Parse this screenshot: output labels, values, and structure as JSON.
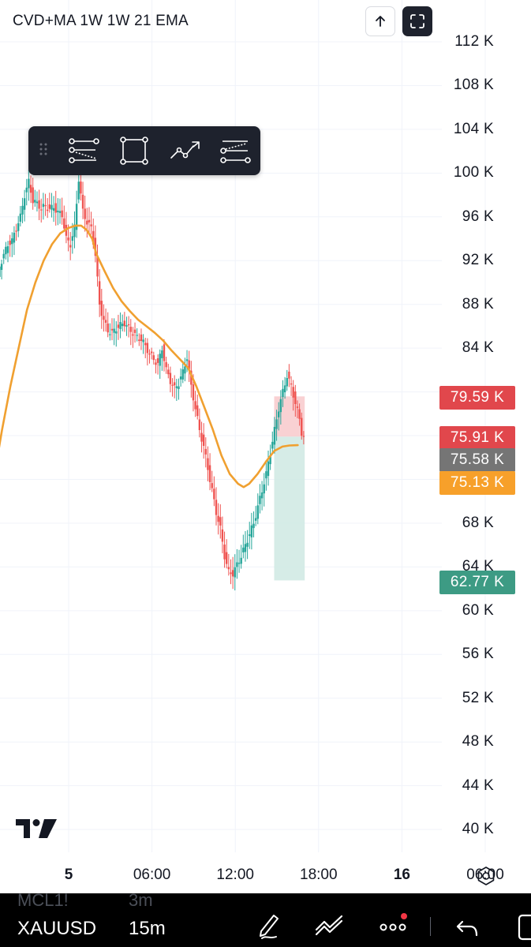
{
  "indicator": {
    "title": "CVD+MA 1W 1W 21 EMA"
  },
  "colors": {
    "up": "#26a69a",
    "down": "#ef5350",
    "ema": "#f0a030",
    "tag_red": "#e1474c",
    "tag_gray": "#757575",
    "tag_orange": "#f7a02a",
    "tag_green": "#3d9b84",
    "zone_red": "#f7c6c8",
    "zone_green": "#cfe9e3"
  },
  "price_tags": [
    {
      "label": "79.59 K",
      "value": 79590,
      "color": "tag_red"
    },
    {
      "label": "75.91 K",
      "value": 75910,
      "color": "tag_red"
    },
    {
      "label": "75.58 K",
      "value": 75580,
      "color": "tag_gray"
    },
    {
      "label": "75.13 K",
      "value": 75130,
      "color": "tag_orange"
    },
    {
      "label": "62.77 K",
      "value": 62770,
      "color": "tag_green"
    }
  ],
  "chart_data": {
    "type": "line",
    "title": "CVD+MA 1W 1W 21 EMA",
    "y_axis": {
      "ticks": [
        112000,
        108000,
        104000,
        100000,
        96000,
        92000,
        88000,
        84000,
        80000,
        76000,
        72000,
        68000,
        64000,
        60000,
        56000,
        52000,
        48000,
        44000,
        40000
      ],
      "tick_labels": [
        "112 K",
        "108 K",
        "104 K",
        "100 K",
        "96 K",
        "92 K",
        "88 K",
        "84 K",
        "",
        "",
        "",
        "68 K",
        "64 K",
        "60 K",
        "56 K",
        "52 K",
        "48 K",
        "44 K",
        "40 K"
      ],
      "ylim": [
        39000,
        115000
      ]
    },
    "x_axis": {
      "tick_labels": [
        "5",
        "06:00",
        "12:00",
        "18:00",
        "16",
        "06:00"
      ],
      "bold_labels": [
        "5",
        "16"
      ],
      "xlim_hours": [
        -5.2,
        35.3
      ],
      "tick_hours": [
        0,
        6,
        12,
        18,
        24,
        30
      ]
    },
    "cvd_path": [
      [
        -5.2,
        89000
      ],
      [
        -4.9,
        91500
      ],
      [
        -4.6,
        92500
      ],
      [
        -4.3,
        93500
      ],
      [
        -4.0,
        93800
      ],
      [
        -3.7,
        95000
      ],
      [
        -3.4,
        96000
      ],
      [
        -3.1,
        98000
      ],
      [
        -2.8,
        99200
      ],
      [
        -2.5,
        97500
      ],
      [
        -2.2,
        97200
      ],
      [
        -1.9,
        96800
      ],
      [
        -1.6,
        97000
      ],
      [
        -1.3,
        96700
      ],
      [
        -1.0,
        96900
      ],
      [
        -0.7,
        96400
      ],
      [
        -0.4,
        96200
      ],
      [
        -0.1,
        94000
      ],
      [
        0.2,
        93500
      ],
      [
        0.5,
        95000
      ],
      [
        0.8,
        99500
      ],
      [
        1.1,
        96500
      ],
      [
        1.4,
        95500
      ],
      [
        1.7,
        95000
      ],
      [
        2.0,
        92500
      ],
      [
        2.3,
        88000
      ],
      [
        2.6,
        86500
      ],
      [
        2.9,
        85600
      ],
      [
        3.2,
        85400
      ],
      [
        3.5,
        85800
      ],
      [
        3.8,
        86100
      ],
      [
        4.1,
        86300
      ],
      [
        4.4,
        85800
      ],
      [
        4.7,
        85400
      ],
      [
        5.0,
        85000
      ],
      [
        5.3,
        84800
      ],
      [
        5.6,
        84200
      ],
      [
        5.9,
        83500
      ],
      [
        6.2,
        83000
      ],
      [
        6.5,
        82500
      ],
      [
        6.8,
        84000
      ],
      [
        7.1,
        82000
      ],
      [
        7.4,
        81000
      ],
      [
        7.7,
        80300
      ],
      [
        8.0,
        80800
      ],
      [
        8.3,
        81800
      ],
      [
        8.6,
        83200
      ],
      [
        8.9,
        80500
      ],
      [
        9.2,
        78500
      ],
      [
        9.5,
        76500
      ],
      [
        9.8,
        75000
      ],
      [
        10.1,
        73000
      ],
      [
        10.4,
        71000
      ],
      [
        10.7,
        69000
      ],
      [
        11.0,
        67500
      ],
      [
        11.3,
        65000
      ],
      [
        11.6,
        63500
      ],
      [
        11.9,
        63400
      ],
      [
        12.2,
        64200
      ],
      [
        12.5,
        65000
      ],
      [
        12.8,
        66000
      ],
      [
        13.1,
        67000
      ],
      [
        13.4,
        68000
      ],
      [
        13.7,
        69500
      ],
      [
        14.0,
        71000
      ],
      [
        14.3,
        72500
      ],
      [
        14.6,
        74500
      ],
      [
        14.9,
        76500
      ],
      [
        15.2,
        78500
      ],
      [
        15.5,
        80000
      ],
      [
        15.8,
        81500
      ],
      [
        16.1,
        80500
      ],
      [
        16.4,
        79000
      ],
      [
        16.7,
        77500
      ],
      [
        16.9,
        75900
      ]
    ],
    "series": [
      {
        "name": "21 EMA",
        "points": [
          [
            -5.2,
            73500
          ],
          [
            -4.8,
            76500
          ],
          [
            -4.2,
            80500
          ],
          [
            -3.6,
            84000
          ],
          [
            -3.0,
            87500
          ],
          [
            -2.4,
            90000
          ],
          [
            -1.8,
            92000
          ],
          [
            -1.2,
            93500
          ],
          [
            -0.6,
            94500
          ],
          [
            0.0,
            95000
          ],
          [
            0.5,
            95200
          ],
          [
            0.9,
            95200
          ],
          [
            1.3,
            94800
          ],
          [
            1.7,
            94000
          ],
          [
            2.0,
            92600
          ],
          [
            2.6,
            91000
          ],
          [
            3.2,
            89500
          ],
          [
            3.8,
            88300
          ],
          [
            4.4,
            87400
          ],
          [
            5.0,
            86600
          ],
          [
            5.6,
            86000
          ],
          [
            6.2,
            85400
          ],
          [
            6.8,
            84700
          ],
          [
            7.4,
            83800
          ],
          [
            8.0,
            83000
          ],
          [
            8.6,
            82200
          ],
          [
            9.2,
            80500
          ],
          [
            9.8,
            78500
          ],
          [
            10.4,
            76500
          ],
          [
            11.0,
            74200
          ],
          [
            11.6,
            72500
          ],
          [
            12.2,
            71600
          ],
          [
            12.6,
            71300
          ],
          [
            13.0,
            71600
          ],
          [
            13.6,
            72500
          ],
          [
            14.2,
            73600
          ],
          [
            14.8,
            74600
          ],
          [
            15.4,
            75000
          ],
          [
            15.9,
            75100
          ],
          [
            16.5,
            75130
          ]
        ]
      }
    ],
    "position_zones": {
      "entry": 75910,
      "stop": 79590,
      "target": 62770,
      "start_hour": 14.8,
      "end_hour": 17.0
    },
    "grid": true
  }
}
